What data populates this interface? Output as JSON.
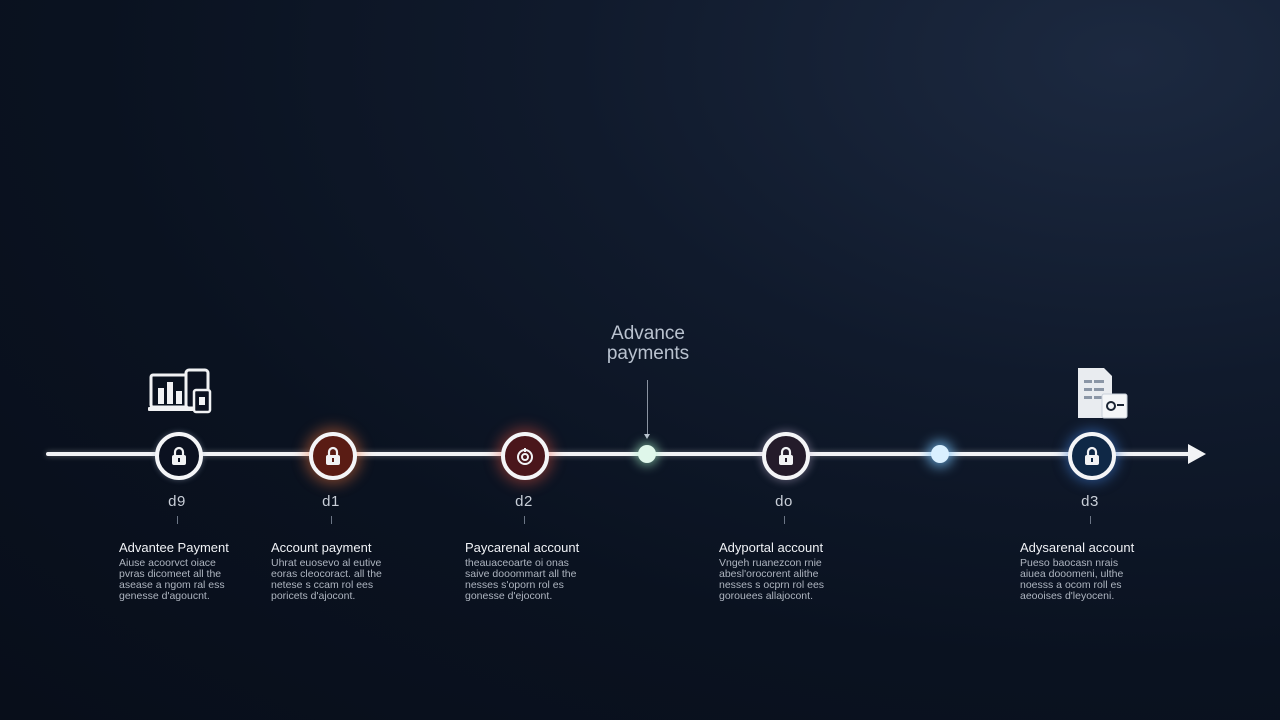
{
  "callout": {
    "text": "Advance\npayments"
  },
  "colors": {
    "line": "#f2f3f5",
    "step_fills": [
      "#0b1120",
      "#5a1c14",
      "#4a161b",
      "#241b2a",
      "#0f2846"
    ],
    "step_glows": [
      "#9aa7bd",
      "#ff7a3c",
      "#ff5a40",
      "#c9b7d6",
      "#3f7dd6"
    ],
    "marker_green": "#a8f0c8",
    "marker_blue": "#7cc8ff"
  },
  "steps": [
    {
      "code": "d9",
      "title": "Advantee Payment",
      "icon": "lock-icon",
      "description": "Aiuse acoorvct oiace\npvras dicomeet  all the\nasease a ngom ral ess\ngenesse d'agoucnt."
    },
    {
      "code": "d1",
      "title": "Account payment",
      "icon": "lock-icon",
      "description": "Uhrat euosevo al eutive\neoras cleocoract. all the\nnetese s ccam rol ees\nporicets d'ajocont."
    },
    {
      "code": "d2",
      "title": "Paycarenal account",
      "icon": "coin-icon",
      "description": "theauaceoarte oi onas\nsaive dooommart  all the\nnesses s'oporn rol es\ngonesse d'ejocont."
    },
    {
      "code": "do",
      "title": "Adyportal account",
      "icon": "lock-icon",
      "description": "Vngeh ruanezcon rnie\nabesl'orocorent alithe\nnesses s ocprn rol ees\ngorouees allajocont."
    },
    {
      "code": "d3",
      "title": "Adysarenal account",
      "icon": "lock-icon",
      "description": "Pueso baocasn nrais\naiuea dooomeni, ulthe\nnoesss a ocom roll es\naeooises d'leyoceni."
    }
  ]
}
